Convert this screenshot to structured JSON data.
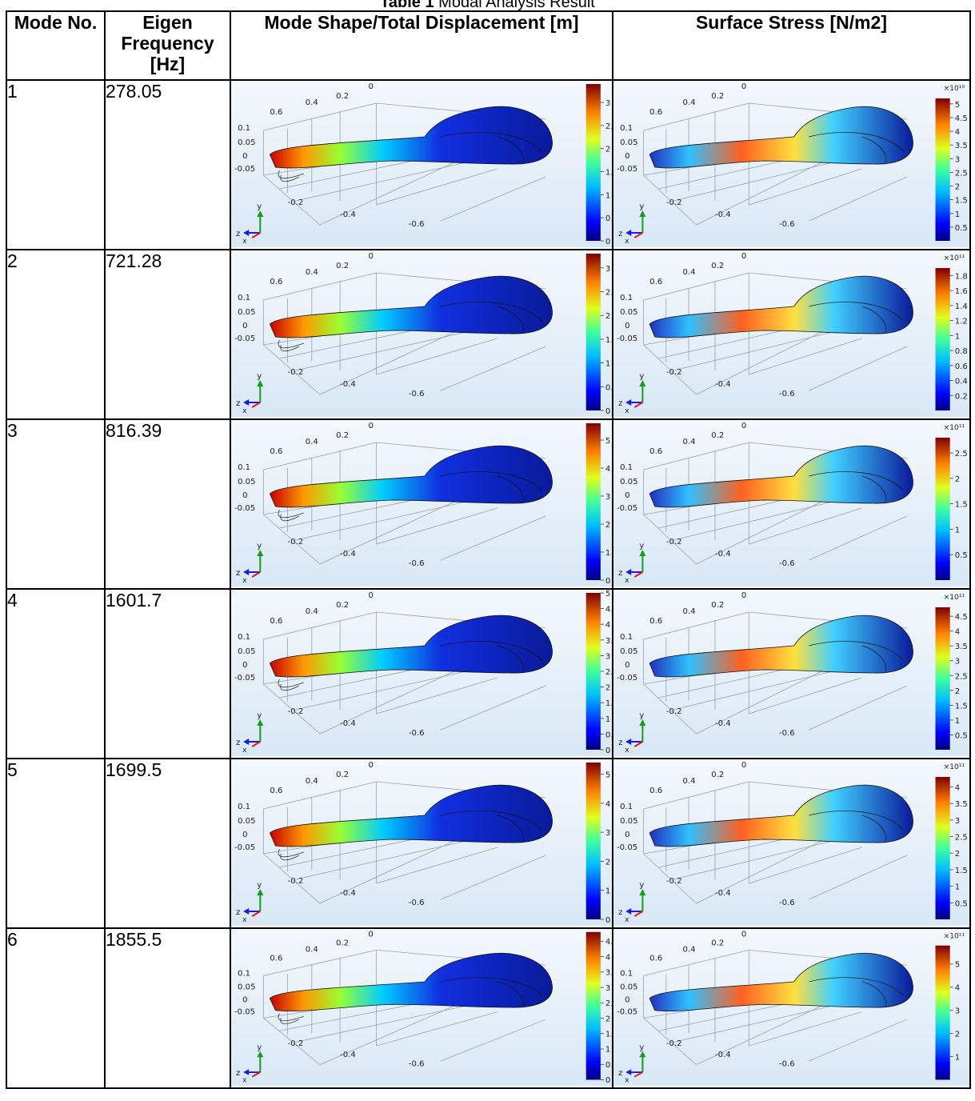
{
  "caption": {
    "label": "Table 1",
    "title": "Modal Analysis Result"
  },
  "headers": {
    "mode": "Mode No.",
    "freq": "Eigen Frequency [Hz]",
    "disp": "Mode Shape/Total Displacement [m]",
    "stress": "Surface Stress [N/m2]"
  },
  "axis_labels": {
    "left": [
      "0.1",
      "0.05",
      "0",
      "-0.05"
    ],
    "top": [
      "0.6",
      "0.4",
      "0.2",
      "0"
    ],
    "bottom": [
      "-0.2",
      "-0.4",
      "-0.6"
    ],
    "triad": {
      "y": "y",
      "z": "z",
      "x": "x"
    }
  },
  "colors": {
    "background_top": "#f4f8fd",
    "background_bottom": "#d9e8f6"
  },
  "rows": [
    {
      "mode": "1",
      "freq": "278.05",
      "disp_scale": {
        "ticks": [
          "3",
          "2.5",
          "2",
          "1.5",
          "1",
          "0.5",
          "0"
        ],
        "max": 3.4,
        "exponent": ""
      },
      "stress_scale": {
        "ticks": [
          "5",
          "4.5",
          "4",
          "3.5",
          "3",
          "2.5",
          "2",
          "1.5",
          "1",
          "0.5"
        ],
        "max": 5.2,
        "exponent": "×10¹⁰"
      }
    },
    {
      "mode": "2",
      "freq": "721.28",
      "disp_scale": {
        "ticks": [
          "3",
          "2.5",
          "2",
          "1.5",
          "1",
          "0.5",
          "0"
        ],
        "max": 3.3,
        "exponent": ""
      },
      "stress_scale": {
        "ticks": [
          "1.8",
          "1.6",
          "1.4",
          "1.2",
          "1",
          "0.8",
          "0.6",
          "0.4",
          "0.2"
        ],
        "max": 1.9,
        "exponent": "×10¹¹"
      }
    },
    {
      "mode": "3",
      "freq": "816.39",
      "disp_scale": {
        "ticks": [
          "5",
          "4",
          "3",
          "2",
          "1",
          "0"
        ],
        "max": 5.6,
        "exponent": ""
      },
      "stress_scale": {
        "ticks": [
          "2.5",
          "2",
          "1.5",
          "1",
          "0.5"
        ],
        "max": 2.8,
        "exponent": "×10¹¹"
      }
    },
    {
      "mode": "4",
      "freq": "1601.7",
      "disp_scale": {
        "ticks": [
          "5",
          "4.5",
          "4",
          "3.5",
          "3",
          "2.5",
          "2",
          "1.5",
          "1",
          "0.5",
          "0"
        ],
        "max": 5.0,
        "exponent": ""
      },
      "stress_scale": {
        "ticks": [
          "4.5",
          "4",
          "3.5",
          "3",
          "2.5",
          "2",
          "1.5",
          "1",
          "0.5"
        ],
        "max": 4.8,
        "exponent": "×10¹¹"
      }
    },
    {
      "mode": "5",
      "freq": "1699.5",
      "disp_scale": {
        "ticks": [
          "5",
          "4",
          "3",
          "2",
          "1",
          "0"
        ],
        "max": 5.4,
        "exponent": ""
      },
      "stress_scale": {
        "ticks": [
          "4",
          "3.5",
          "3",
          "2.5",
          "2",
          "1.5",
          "1",
          "0.5"
        ],
        "max": 4.3,
        "exponent": "×10¹¹"
      }
    },
    {
      "mode": "6",
      "freq": "1855.5",
      "disp_scale": {
        "ticks": [
          "4.5",
          "4",
          "3.5",
          "3",
          "2.5",
          "2",
          "1.5",
          "1",
          "0.5",
          "0"
        ],
        "max": 4.8,
        "exponent": ""
      },
      "stress_scale": {
        "ticks": [
          "5",
          "4",
          "3",
          "2",
          "1"
        ],
        "max": 5.8,
        "exponent": "×10¹¹"
      }
    }
  ]
}
